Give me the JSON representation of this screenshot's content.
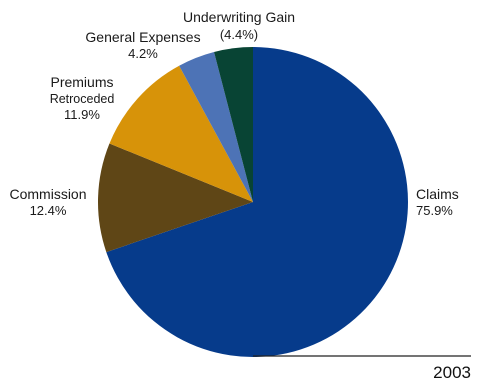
{
  "chart_data": {
    "type": "pie",
    "year_label": "2003",
    "start_angle_deg": 0,
    "direction": "clockwise",
    "slices": [
      {
        "name": "Claims",
        "label": "Claims",
        "sub": "",
        "value": 75.9,
        "value_label": "75.9%",
        "color": "#063b8b"
      },
      {
        "name": "Commission",
        "label": "Commission",
        "sub": "",
        "value": 12.4,
        "value_label": "12.4%",
        "color": "#5f4616"
      },
      {
        "name": "Premiums Retroceded",
        "label": "Premiums",
        "sub": "Retroceded",
        "value": 11.9,
        "value_label": "11.9%",
        "color": "#d79309"
      },
      {
        "name": "General Expenses",
        "label": "General Expenses",
        "sub": "",
        "value": 4.2,
        "value_label": "4.2%",
        "color": "#4d73b6"
      },
      {
        "name": "Underwriting Gain",
        "label": "Underwriting Gain",
        "sub": "",
        "value": 4.4,
        "value_label": "(4.4%)",
        "color": "#084434"
      }
    ]
  }
}
